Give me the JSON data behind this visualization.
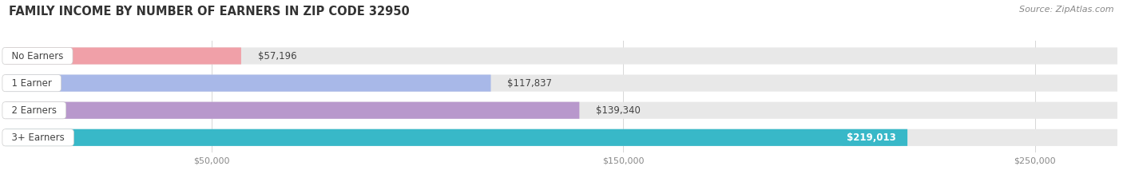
{
  "title": "FAMILY INCOME BY NUMBER OF EARNERS IN ZIP CODE 32950",
  "source": "Source: ZipAtlas.com",
  "categories": [
    "No Earners",
    "1 Earner",
    "2 Earners",
    "3+ Earners"
  ],
  "values": [
    57196,
    117837,
    139340,
    219013
  ],
  "bar_colors": [
    "#f0a0a8",
    "#a8b8e8",
    "#b898cc",
    "#38b8c8"
  ],
  "value_labels": [
    "$57,196",
    "$117,837",
    "$139,340",
    "$219,013"
  ],
  "x_ticks": [
    50000,
    150000,
    250000
  ],
  "x_tick_labels": [
    "$50,000",
    "$150,000",
    "$250,000"
  ],
  "xlim_max": 270000,
  "background_color": "#ffffff",
  "bar_bg_color": "#e8e8e8",
  "title_fontsize": 10.5,
  "source_fontsize": 8,
  "label_fontsize": 8.5,
  "value_fontsize": 8.5
}
